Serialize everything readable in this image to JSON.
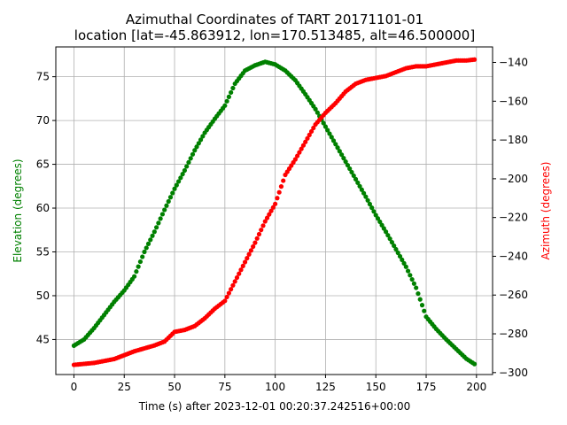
{
  "chart_data": {
    "type": "scatter",
    "title": "Azimuthal Coordinates of TART 20171101-01",
    "subtitle": "location [lat=-45.863912, lon=170.513485, alt=46.500000]",
    "xlabel": "Time (s) after 2023-12-01 00:20:37.242516+00:00",
    "ylabel_left": "Elevation (degrees)",
    "ylabel_right": "Azimuth (degrees)",
    "xlim": [
      -9,
      208
    ],
    "ylim_left": [
      41,
      78.4
    ],
    "ylim_right": [
      -301,
      -132
    ],
    "xticks": [
      0,
      25,
      50,
      75,
      100,
      125,
      150,
      175,
      200
    ],
    "yticks_left": [
      45,
      50,
      55,
      60,
      65,
      70,
      75
    ],
    "yticks_right": [
      -140,
      -160,
      -180,
      -200,
      -220,
      -240,
      -260,
      -280,
      -300
    ],
    "grid": true,
    "colors": {
      "elevation": "#008000",
      "azimuth": "#ff0000",
      "grid": "#b0b0b0"
    },
    "series": [
      {
        "axis": "left",
        "color": "#008000",
        "points": [
          [
            0,
            44.3
          ],
          [
            5,
            45.0
          ],
          [
            10,
            46.3
          ],
          [
            15,
            47.8
          ],
          [
            20,
            49.3
          ],
          [
            25,
            50.6
          ],
          [
            30,
            52.2
          ],
          [
            35,
            55.0
          ],
          [
            40,
            57.3
          ],
          [
            45,
            59.8
          ],
          [
            50,
            62.2
          ],
          [
            55,
            64.3
          ],
          [
            60,
            66.6
          ],
          [
            65,
            68.6
          ],
          [
            70,
            70.2
          ],
          [
            75,
            71.7
          ],
          [
            80,
            74.2
          ],
          [
            85,
            75.7
          ],
          [
            90,
            76.3
          ],
          [
            95,
            76.7
          ],
          [
            100,
            76.4
          ],
          [
            105,
            75.7
          ],
          [
            110,
            74.6
          ],
          [
            115,
            73.0
          ],
          [
            120,
            71.3
          ],
          [
            125,
            69.3
          ],
          [
            130,
            67.3
          ],
          [
            135,
            65.3
          ],
          [
            140,
            63.3
          ],
          [
            145,
            61.3
          ],
          [
            150,
            59.2
          ],
          [
            155,
            57.3
          ],
          [
            160,
            55.3
          ],
          [
            165,
            53.3
          ],
          [
            170,
            50.9
          ],
          [
            175,
            47.6
          ],
          [
            180,
            46.2
          ],
          [
            185,
            45.0
          ],
          [
            190,
            43.9
          ],
          [
            195,
            42.8
          ],
          [
            199,
            42.2
          ]
        ]
      },
      {
        "axis": "right",
        "color": "#ff0000",
        "points": [
          [
            0,
            -296
          ],
          [
            10,
            -295
          ],
          [
            20,
            -293
          ],
          [
            25,
            -291
          ],
          [
            30,
            -289
          ],
          [
            40,
            -286
          ],
          [
            45,
            -284
          ],
          [
            50,
            -279
          ],
          [
            55,
            -278
          ],
          [
            60,
            -276
          ],
          [
            65,
            -272
          ],
          [
            70,
            -267
          ],
          [
            75,
            -263
          ],
          [
            80,
            -253
          ],
          [
            85,
            -243
          ],
          [
            90,
            -233
          ],
          [
            95,
            -222
          ],
          [
            100,
            -213
          ],
          [
            105,
            -198
          ],
          [
            110,
            -190
          ],
          [
            115,
            -181
          ],
          [
            120,
            -172
          ],
          [
            125,
            -166
          ],
          [
            130,
            -161
          ],
          [
            135,
            -155
          ],
          [
            140,
            -151
          ],
          [
            145,
            -149
          ],
          [
            150,
            -148
          ],
          [
            155,
            -147
          ],
          [
            160,
            -145
          ],
          [
            165,
            -143
          ],
          [
            170,
            -142
          ],
          [
            175,
            -142
          ],
          [
            180,
            -141
          ],
          [
            185,
            -140
          ],
          [
            190,
            -139
          ],
          [
            195,
            -139
          ],
          [
            199,
            -138.5
          ]
        ]
      }
    ]
  }
}
